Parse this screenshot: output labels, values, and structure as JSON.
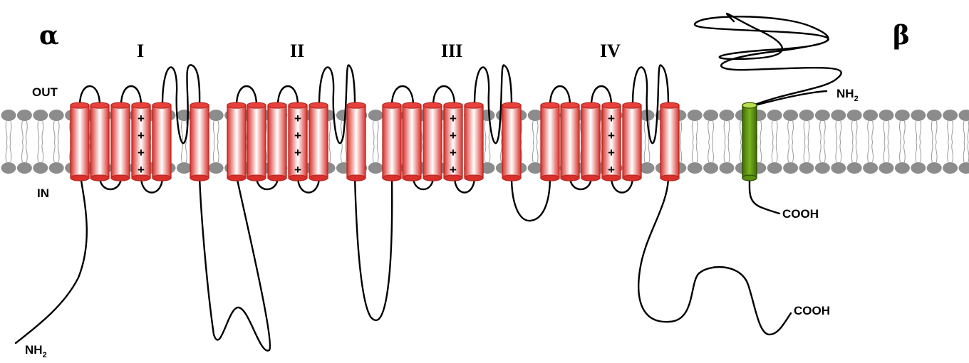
{
  "labels": {
    "alpha": "α",
    "beta": "β",
    "out": "OUT",
    "in": "IN",
    "domains": [
      "I",
      "II",
      "III",
      "IV"
    ],
    "plus": "+",
    "alpha_n_terminus": "NH",
    "alpha_n_terminus_sub": "2",
    "alpha_c_terminus": "COOH",
    "beta_n_terminus": "NH",
    "beta_n_terminus_sub": "2",
    "beta_c_terminus": "COOH"
  },
  "colors": {
    "helix_red": "#e8413c",
    "helix_highlight": "#ffffff",
    "helix_dark": "#b82822",
    "beta_helix_green": "#5a8f10",
    "beta_helix_top": "#b8e04a",
    "lipid_head": "#8c8c8c",
    "lipid_tail": "#9a9a9a",
    "chain": "#000000"
  },
  "structure": {
    "alpha_domains": 4,
    "segments_per_domain": 6,
    "voltage_sensor_segment": 4,
    "plus_charges_per_sensor": 4,
    "beta_transmembrane_segments": 1
  }
}
